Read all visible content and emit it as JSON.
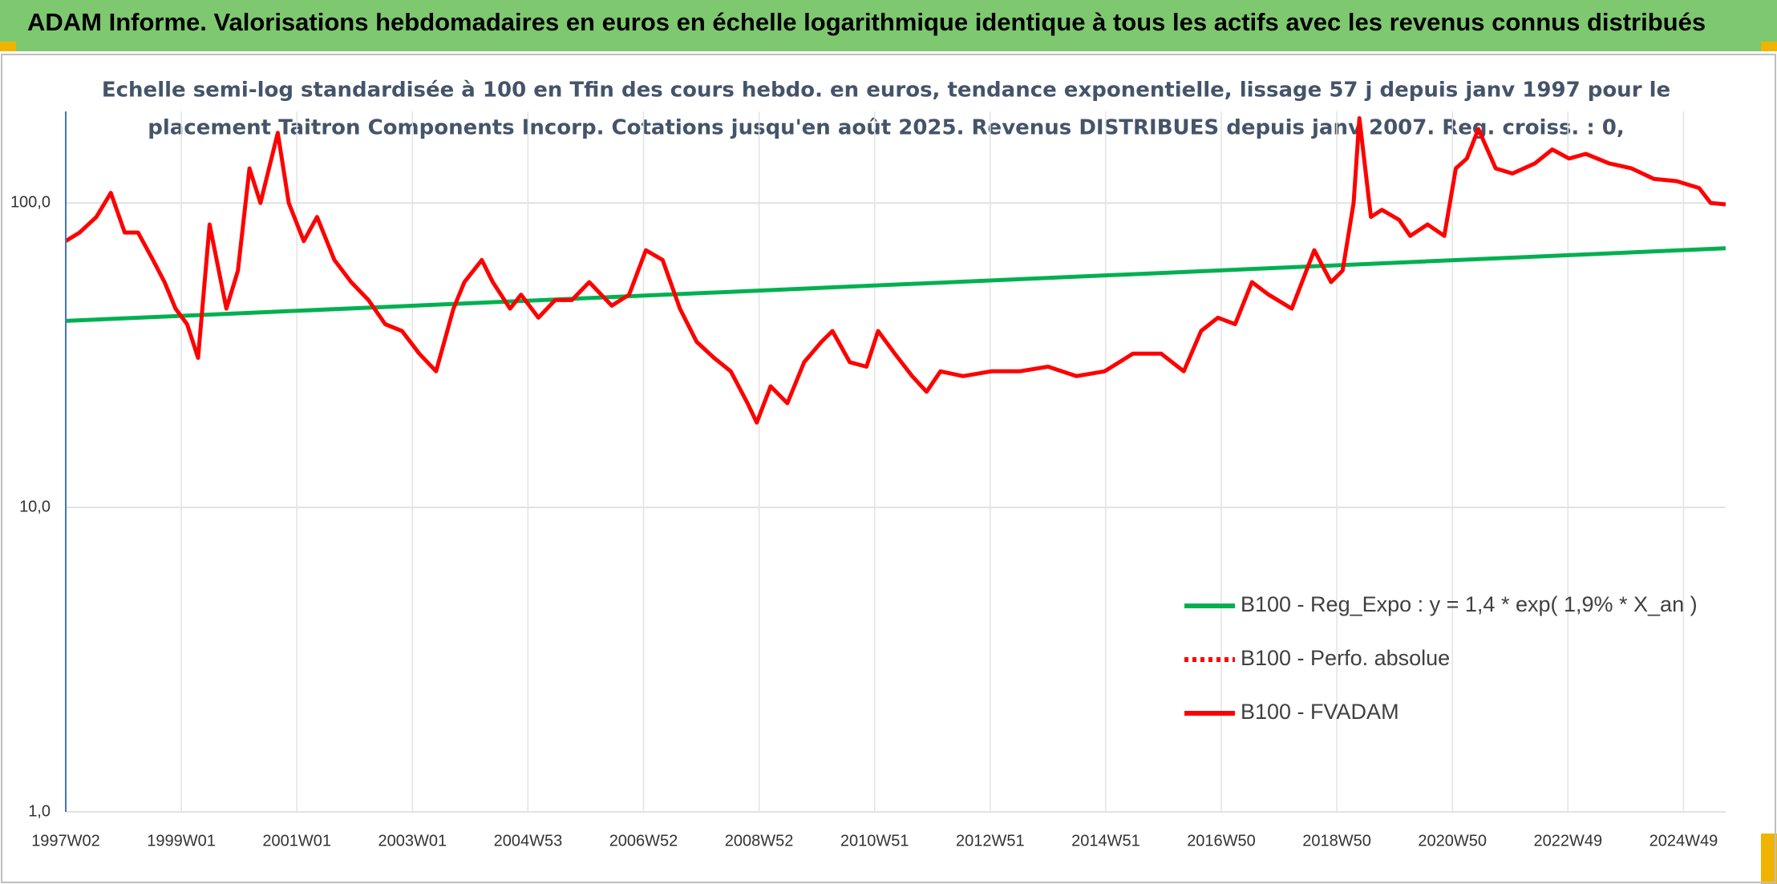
{
  "header": {
    "title": "ADAM Informe. Valorisations hebdomadaires en euros en échelle logarithmique identique à tous les actifs avec les revenus connus distribués"
  },
  "chart_data": {
    "type": "line",
    "subtitle_lines": [
      "Echelle semi-log standardisée à 100 en Tfin des cours hebdo. en euros, tendance exponentielle, lissage 57 j depuis janv 1997 pour le",
      "placement Taitron Components Incorp. Cotations jusqu'en août 2025. Revenus DISTRIBUES depuis janv 2007. Reg. croiss. : 0,"
    ],
    "log_scale": true,
    "grid": true,
    "legend_position": "lower right",
    "xlim": [
      1997,
      2025.73
    ],
    "ylim": [
      1,
      200
    ],
    "xticks": [
      {
        "value": 1997,
        "label": "1997W02"
      },
      {
        "value": 1999,
        "label": "1999W01"
      },
      {
        "value": 2001,
        "label": "2001W01"
      },
      {
        "value": 2003,
        "label": "2003W01"
      },
      {
        "value": 2005,
        "label": "2004W53"
      },
      {
        "value": 2007,
        "label": "2006W52"
      },
      {
        "value": 2009,
        "label": "2008W52"
      },
      {
        "value": 2011,
        "label": "2010W51"
      },
      {
        "value": 2013,
        "label": "2012W51"
      },
      {
        "value": 2015,
        "label": "2014W51"
      },
      {
        "value": 2017,
        "label": "2016W50"
      },
      {
        "value": 2019,
        "label": "2018W50"
      },
      {
        "value": 2021,
        "label": "2020W50"
      },
      {
        "value": 2023,
        "label": "2022W49"
      },
      {
        "value": 2025,
        "label": "2024W49"
      }
    ],
    "yticks": [
      {
        "value": 1,
        "label": "1,0"
      },
      {
        "value": 10,
        "label": "10,0"
      },
      {
        "value": 100,
        "label": "100,0"
      }
    ],
    "series": [
      {
        "name": "B100 - Reg_Expo : y = 1,4 * exp( 1,9% *  X_an )",
        "color": "#00b050",
        "linestyle": "solid",
        "x": [
          1997,
          2025.73
        ],
        "values": [
          41,
          71
        ]
      },
      {
        "name": "B100 - Perfo. absolue",
        "color": "#ff0000",
        "linestyle": "dotted",
        "x": [],
        "values": []
      },
      {
        "name": "B100 - FVADAM",
        "color": "#ff0000",
        "linestyle": "solid",
        "x": [
          1997.0,
          1997.24,
          1997.53,
          1997.78,
          1998.02,
          1998.25,
          1998.51,
          1998.71,
          1998.9,
          1999.1,
          1999.29,
          1999.49,
          1999.78,
          1999.98,
          2000.18,
          2000.37,
          2000.67,
          2000.86,
          2001.12,
          2001.35,
          2001.65,
          2001.94,
          2002.24,
          2002.53,
          2002.82,
          2003.12,
          2003.41,
          2003.71,
          2003.9,
          2004.2,
          2004.39,
          2004.69,
          2004.88,
          2005.18,
          2005.47,
          2005.76,
          2006.06,
          2006.45,
          2006.75,
          2007.04,
          2007.33,
          2007.63,
          2007.92,
          2008.22,
          2008.51,
          2008.8,
          2008.96,
          2009.2,
          2009.49,
          2009.78,
          2010.08,
          2010.27,
          2010.57,
          2010.86,
          2011.06,
          2011.35,
          2011.65,
          2011.9,
          2012.14,
          2012.53,
          2013.02,
          2013.51,
          2014.0,
          2014.49,
          2014.98,
          2015.47,
          2015.96,
          2016.35,
          2016.65,
          2016.94,
          2017.24,
          2017.53,
          2017.82,
          2018.22,
          2018.61,
          2018.9,
          2019.1,
          2019.29,
          2019.39,
          2019.59,
          2019.78,
          2020.08,
          2020.27,
          2020.57,
          2020.86,
          2021.06,
          2021.25,
          2021.45,
          2021.75,
          2022.04,
          2022.43,
          2022.73,
          2023.02,
          2023.31,
          2023.71,
          2024.1,
          2024.49,
          2024.88,
          2025.27,
          2025.47,
          2025.73
        ],
        "values": [
          75,
          80,
          90,
          108,
          80,
          80,
          65,
          55,
          45,
          40,
          31,
          85,
          45,
          60,
          130,
          100,
          170,
          100,
          75,
          90,
          65,
          55,
          48,
          40,
          38,
          32,
          28,
          45,
          55,
          65,
          55,
          45,
          50,
          42,
          48,
          48,
          55,
          46,
          50,
          70,
          65,
          45,
          35,
          31,
          28,
          22,
          19,
          25,
          22,
          30,
          35,
          38,
          30,
          29,
          38,
          32,
          27,
          24,
          28,
          27,
          28,
          28,
          29,
          27,
          28,
          32,
          32,
          28,
          38,
          42,
          40,
          55,
          50,
          45,
          70,
          55,
          60,
          100,
          190,
          90,
          95,
          88,
          78,
          85,
          78,
          130,
          140,
          175,
          130,
          125,
          135,
          150,
          140,
          145,
          135,
          130,
          120,
          118,
          112,
          100,
          99
        ]
      }
    ]
  }
}
